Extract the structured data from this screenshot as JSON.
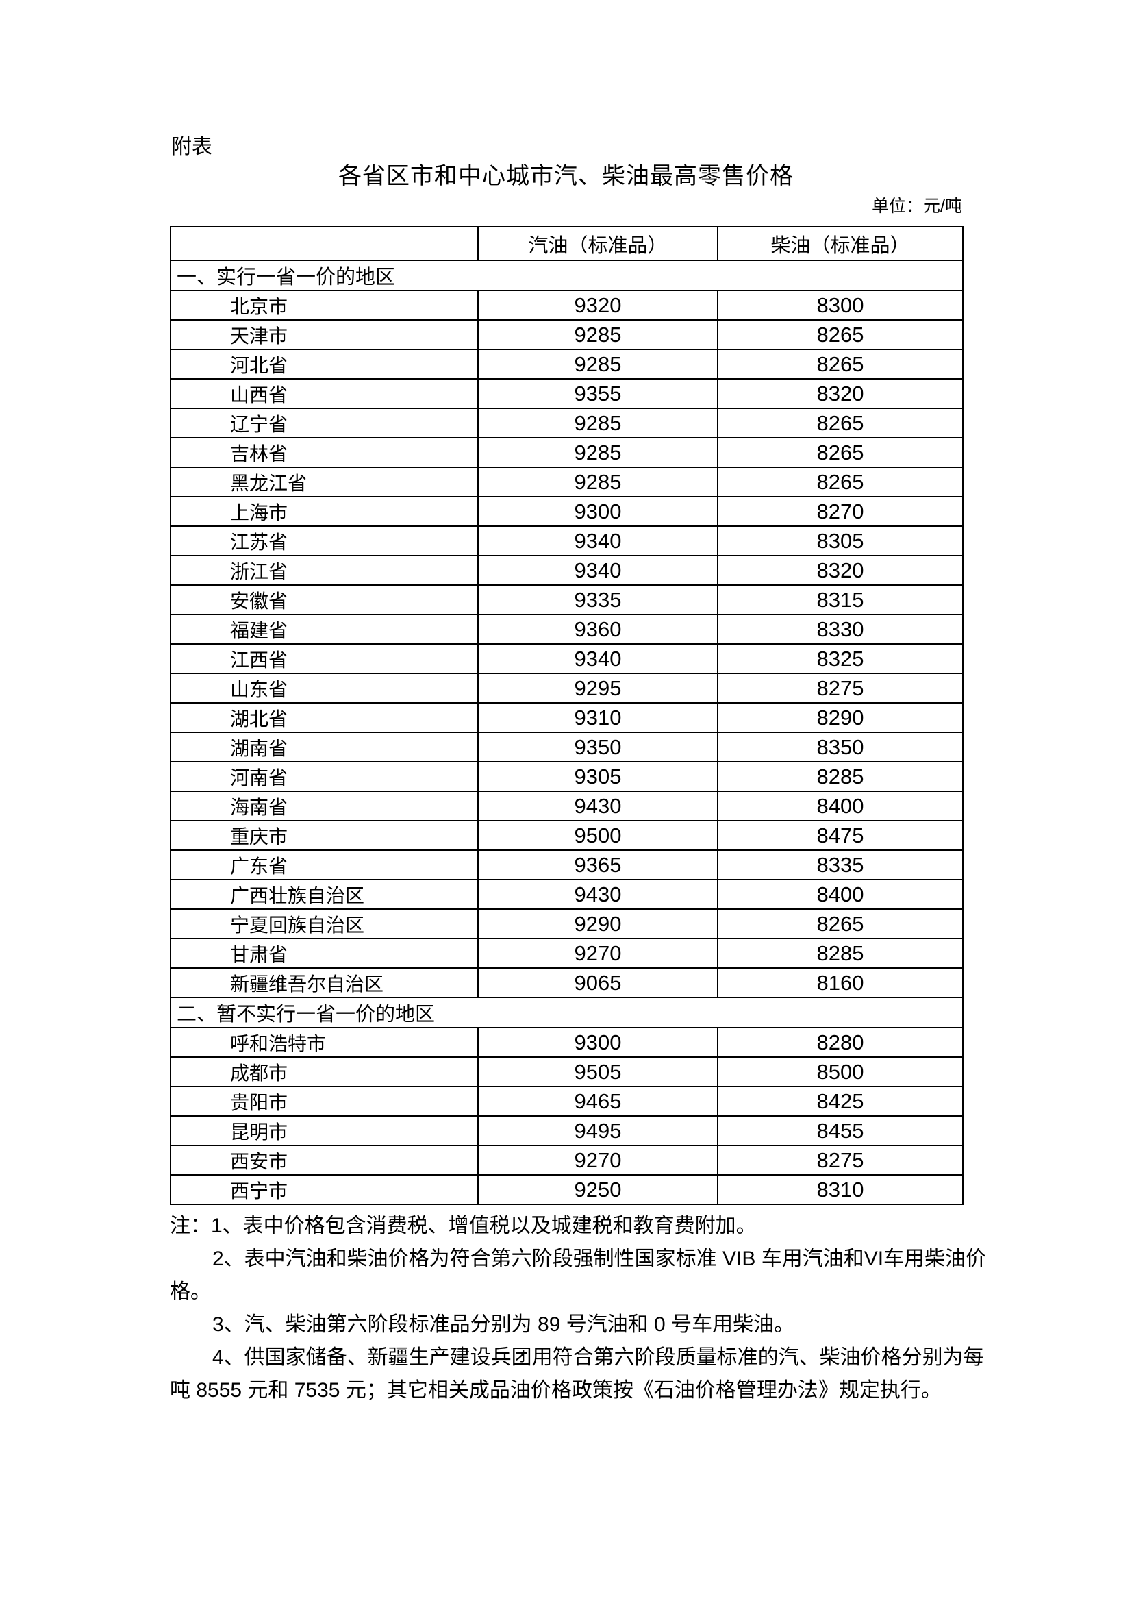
{
  "page": {
    "appendix_label": "附表",
    "title": "各省区市和中心城市汽、柴油最高零售价格",
    "unit_note": "单位：元/吨"
  },
  "table": {
    "columns": [
      "",
      "汽油（标准品）",
      "柴油（标准品）"
    ],
    "sections": [
      {
        "label": "一、实行一省一价的地区",
        "rows": [
          {
            "region": "北京市",
            "gasoline": "9320",
            "diesel": "8300"
          },
          {
            "region": "天津市",
            "gasoline": "9285",
            "diesel": "8265"
          },
          {
            "region": "河北省",
            "gasoline": "9285",
            "diesel": "8265"
          },
          {
            "region": "山西省",
            "gasoline": "9355",
            "diesel": "8320"
          },
          {
            "region": "辽宁省",
            "gasoline": "9285",
            "diesel": "8265"
          },
          {
            "region": "吉林省",
            "gasoline": "9285",
            "diesel": "8265"
          },
          {
            "region": "黑龙江省",
            "gasoline": "9285",
            "diesel": "8265"
          },
          {
            "region": "上海市",
            "gasoline": "9300",
            "diesel": "8270"
          },
          {
            "region": "江苏省",
            "gasoline": "9340",
            "diesel": "8305"
          },
          {
            "region": "浙江省",
            "gasoline": "9340",
            "diesel": "8320"
          },
          {
            "region": "安徽省",
            "gasoline": "9335",
            "diesel": "8315"
          },
          {
            "region": "福建省",
            "gasoline": "9360",
            "diesel": "8330"
          },
          {
            "region": "江西省",
            "gasoline": "9340",
            "diesel": "8325"
          },
          {
            "region": "山东省",
            "gasoline": "9295",
            "diesel": "8275"
          },
          {
            "region": "湖北省",
            "gasoline": "9310",
            "diesel": "8290"
          },
          {
            "region": "湖南省",
            "gasoline": "9350",
            "diesel": "8350"
          },
          {
            "region": "河南省",
            "gasoline": "9305",
            "diesel": "8285"
          },
          {
            "region": "海南省",
            "gasoline": "9430",
            "diesel": "8400"
          },
          {
            "region": "重庆市",
            "gasoline": "9500",
            "diesel": "8475"
          },
          {
            "region": "广东省",
            "gasoline": "9365",
            "diesel": "8335"
          },
          {
            "region": "广西壮族自治区",
            "gasoline": "9430",
            "diesel": "8400"
          },
          {
            "region": "宁夏回族自治区",
            "gasoline": "9290",
            "diesel": "8265"
          },
          {
            "region": "甘肃省",
            "gasoline": "9270",
            "diesel": "8285"
          },
          {
            "region": "新疆维吾尔自治区",
            "gasoline": "9065",
            "diesel": "8160"
          }
        ]
      },
      {
        "label": "二、暂不实行一省一价的地区",
        "rows": [
          {
            "region": "呼和浩特市",
            "gasoline": "9300",
            "diesel": "8280"
          },
          {
            "region": "成都市",
            "gasoline": "9505",
            "diesel": "8500"
          },
          {
            "region": "贵阳市",
            "gasoline": "9465",
            "diesel": "8425"
          },
          {
            "region": "昆明市",
            "gasoline": "9495",
            "diesel": "8455"
          },
          {
            "region": "西安市",
            "gasoline": "9270",
            "diesel": "8275"
          },
          {
            "region": "西宁市",
            "gasoline": "9250",
            "diesel": "8310"
          }
        ]
      }
    ]
  },
  "notes": {
    "lines": [
      {
        "indent": false,
        "text": "注：1、表中价格包含消费税、增值税以及城建税和教育费附加。"
      },
      {
        "indent": true,
        "text": "2、表中汽油和柴油价格为符合第六阶段强制性国家标准 VIB 车用汽油和VI车用柴油价"
      },
      {
        "indent": false,
        "text": "格。"
      },
      {
        "indent": true,
        "text": "3、汽、柴油第六阶段标准品分别为 89 号汽油和 0 号车用柴油。"
      },
      {
        "indent": true,
        "text": "4、供国家储备、新疆生产建设兵团用符合第六阶段质量标准的汽、柴油价格分别为每"
      },
      {
        "indent": false,
        "text": "吨 8555 元和 7535 元；其它相关成品油价格政策按《石油价格管理办法》规定执行。"
      }
    ]
  },
  "colors": {
    "background": "#ffffff",
    "text": "#000000",
    "border": "#000000"
  }
}
